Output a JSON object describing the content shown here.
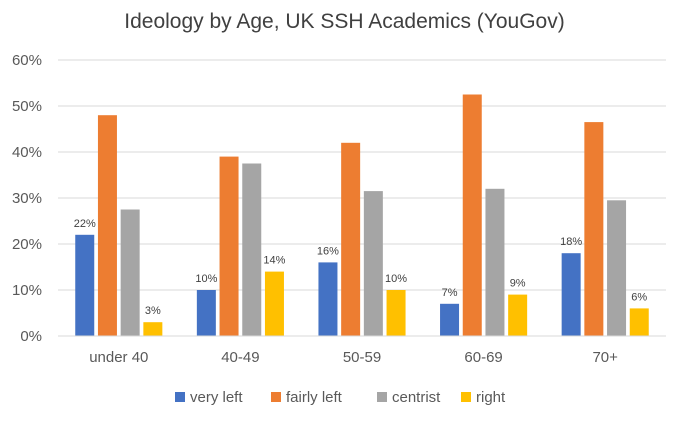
{
  "chart_data": {
    "type": "bar",
    "title": "Ideology by Age, UK SSH Academics (YouGov)",
    "xlabel": "",
    "ylabel": "",
    "ylim": [
      0,
      60
    ],
    "y_ticks": [
      "0%",
      "10%",
      "20%",
      "30%",
      "40%",
      "50%",
      "60%"
    ],
    "grid": true,
    "legend_position": "bottom",
    "categories": [
      "under 40",
      "40-49",
      "50-59",
      "60-69",
      "70+"
    ],
    "series": [
      {
        "name": "very left",
        "color": "#4472C4",
        "values": [
          22,
          10,
          16,
          7,
          18
        ],
        "labels": [
          "22%",
          "10%",
          "16%",
          "7%",
          "18%"
        ]
      },
      {
        "name": "fairly left",
        "color": "#ED7D31",
        "values": [
          48,
          39,
          42,
          52.5,
          46.5
        ],
        "labels": null
      },
      {
        "name": "centrist",
        "color": "#A5A5A5",
        "values": [
          27.5,
          37.5,
          31.5,
          32,
          29.5
        ],
        "labels": null
      },
      {
        "name": "right",
        "color": "#FFC000",
        "values": [
          3,
          14,
          10,
          9,
          6
        ],
        "labels": [
          "3%",
          "14%",
          "10%",
          "9%",
          "6%"
        ]
      }
    ]
  }
}
